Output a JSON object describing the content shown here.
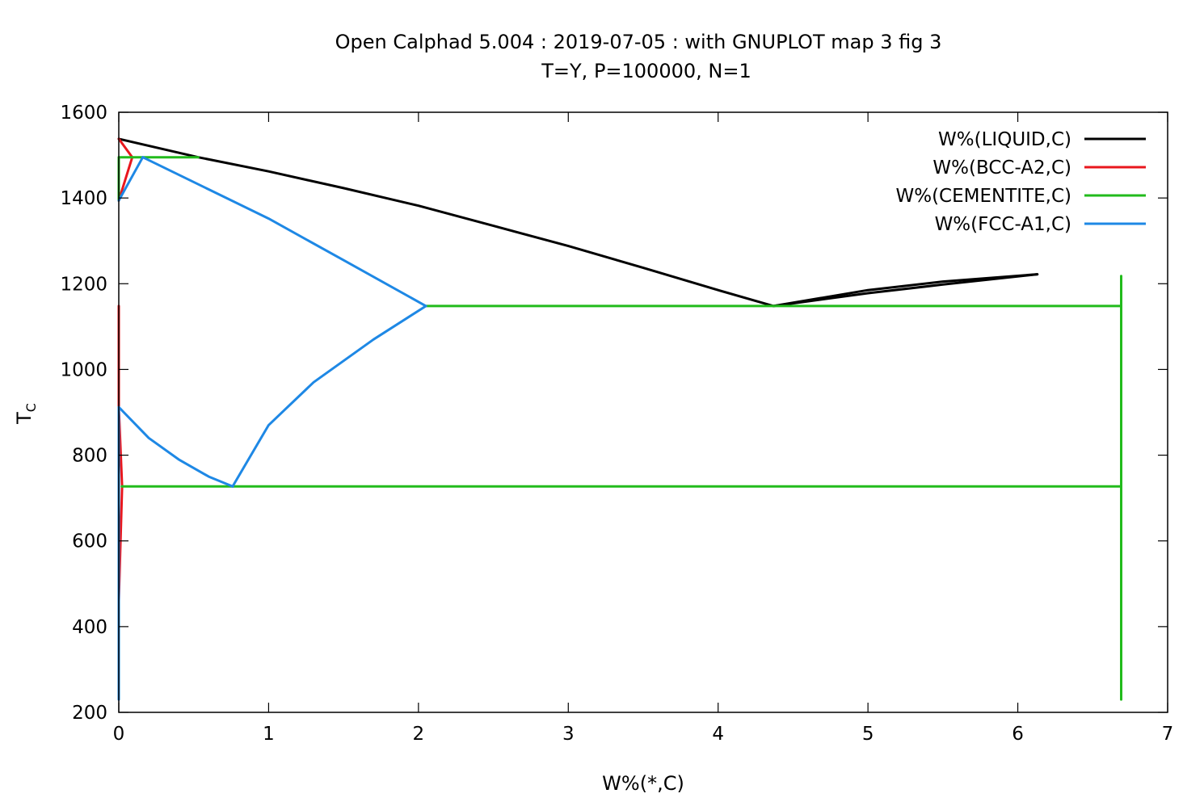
{
  "chart_data": {
    "type": "line",
    "title": "Open Calphad   5.004 :  2019-07-05 : with GNUPLOT map 3 fig 3",
    "subtitle": "T=Y,  P=100000, N=1",
    "xlabel": "W%(*,C)",
    "ylabel_main": "T",
    "ylabel_sub": "C",
    "xlim": [
      0,
      7
    ],
    "ylim": [
      200,
      1600
    ],
    "xticks": [
      "0",
      "1",
      "2",
      "3",
      "4",
      "5",
      "6",
      "7"
    ],
    "yticks": [
      "200",
      "400",
      "600",
      "800",
      "1000",
      "1200",
      "1400",
      "1600"
    ],
    "legend_position": "top-right",
    "grid": false,
    "series": [
      {
        "name": "W%(LIQUID,C)",
        "color": "#000000",
        "segments": [
          [
            [
              0,
              1538
            ],
            [
              0.53,
              1495
            ],
            [
              1.0,
              1462
            ],
            [
              1.5,
              1423
            ],
            [
              2.0,
              1382
            ],
            [
              2.5,
              1335
            ],
            [
              3.0,
              1288
            ],
            [
              3.5,
              1237
            ],
            [
              4.0,
              1185
            ],
            [
              4.37,
              1148
            ]
          ],
          [
            [
              4.37,
              1148
            ],
            [
              5.0,
              1185
            ],
            [
              5.5,
              1205
            ],
            [
              6.13,
              1222
            ]
          ],
          [
            [
              4.37,
              1148
            ],
            [
              5.0,
              1178
            ],
            [
              5.5,
              1198
            ],
            [
              6.13,
              1222
            ]
          ]
        ]
      },
      {
        "name": "W%(BCC-A2,C)",
        "color": "#e8171d",
        "segments": [
          [
            [
              0,
              1538
            ],
            [
              0.09,
              1495
            ]
          ],
          [
            [
              0,
              1394
            ],
            [
              0.09,
              1495
            ]
          ],
          [
            [
              0,
              1148
            ],
            [
              0,
              912
            ]
          ],
          [
            [
              0,
              912
            ],
            [
              0.022,
              727
            ]
          ],
          [
            [
              0,
              460
            ],
            [
              0.022,
              727
            ]
          ]
        ]
      },
      {
        "name": "W%(CEMENTITE,C)",
        "color": "#22bb1c",
        "segments": [
          [
            [
              0,
              1495
            ],
            [
              0.53,
              1495
            ]
          ],
          [
            [
              0,
              1495
            ],
            [
              0,
              1394
            ]
          ],
          [
            [
              2.05,
              1148
            ],
            [
              6.69,
              1148
            ]
          ],
          [
            [
              0.02,
              727
            ],
            [
              6.69,
              727
            ]
          ],
          [
            [
              6.69,
              1218
            ],
            [
              6.69,
              230
            ]
          ]
        ]
      },
      {
        "name": "W%(FCC-A1,C)",
        "color": "#1e88e5",
        "segments": [
          [
            [
              0,
              1394
            ],
            [
              0.16,
              1495
            ]
          ],
          [
            [
              0.16,
              1495
            ],
            [
              0.6,
              1420
            ],
            [
              1.0,
              1352
            ],
            [
              1.5,
              1255
            ],
            [
              2.05,
              1148
            ]
          ],
          [
            [
              2.05,
              1148
            ],
            [
              1.7,
              1070
            ],
            [
              1.3,
              970
            ],
            [
              1.0,
              870
            ],
            [
              0.76,
              727
            ]
          ],
          [
            [
              0,
              912
            ],
            [
              0.2,
              840
            ],
            [
              0.4,
              790
            ],
            [
              0.6,
              750
            ],
            [
              0.76,
              727
            ]
          ],
          [
            [
              0,
              912
            ],
            [
              0,
              230
            ]
          ]
        ]
      }
    ]
  }
}
